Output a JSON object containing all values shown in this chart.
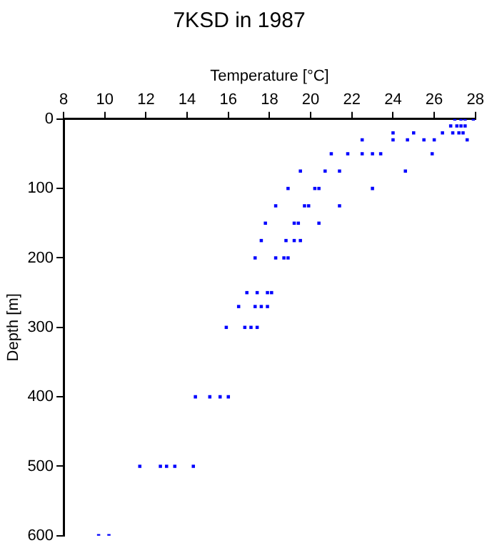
{
  "chart_data": {
    "type": "scatter",
    "title": "7KSD in 1987",
    "xlabel": "Temperature [°C]",
    "ylabel": "Depth [m]",
    "xlim": [
      8,
      28
    ],
    "xticks": [
      8,
      10,
      12,
      14,
      16,
      18,
      20,
      22,
      24,
      26,
      28
    ],
    "ylim": [
      600,
      0
    ],
    "yticks": [
      0,
      100,
      200,
      300,
      400,
      500,
      600
    ],
    "grid": false,
    "legend": false,
    "marker": "square",
    "series": [
      {
        "color": "#0000ff",
        "x": [
          27.0,
          27.3,
          27.5,
          27.9,
          26.8,
          27.1,
          27.3,
          27.5,
          26.4,
          26.9,
          27.2,
          27.4,
          24.0,
          25.0,
          22.5,
          24.0,
          24.7,
          25.5,
          26.0,
          27.6,
          21.0,
          21.8,
          22.5,
          23.0,
          23.4,
          25.9,
          19.5,
          20.7,
          21.4,
          24.6,
          18.9,
          20.2,
          20.4,
          23.0,
          18.3,
          19.7,
          19.9,
          21.4,
          17.8,
          19.2,
          19.4,
          20.4,
          17.6,
          18.8,
          19.2,
          19.5,
          17.3,
          18.3,
          18.7,
          18.9,
          16.9,
          17.4,
          17.9,
          18.1,
          16.5,
          17.3,
          17.6,
          17.9,
          15.9,
          16.8,
          17.1,
          17.4,
          14.4,
          15.1,
          15.6,
          16.0,
          11.7,
          12.7,
          13.0,
          13.4,
          14.3,
          9.7,
          10.2
        ],
        "values": [
          0,
          0,
          0,
          0,
          10,
          10,
          10,
          10,
          20,
          20,
          20,
          20,
          20,
          20,
          30,
          30,
          30,
          30,
          30,
          30,
          50,
          50,
          50,
          50,
          50,
          50,
          75,
          75,
          75,
          75,
          100,
          100,
          100,
          100,
          125,
          125,
          125,
          125,
          150,
          150,
          150,
          150,
          175,
          175,
          175,
          175,
          200,
          200,
          200,
          200,
          250,
          250,
          250,
          250,
          270,
          270,
          270,
          270,
          300,
          300,
          300,
          300,
          400,
          400,
          400,
          400,
          500,
          500,
          500,
          500,
          500,
          600,
          600
        ]
      }
    ]
  }
}
